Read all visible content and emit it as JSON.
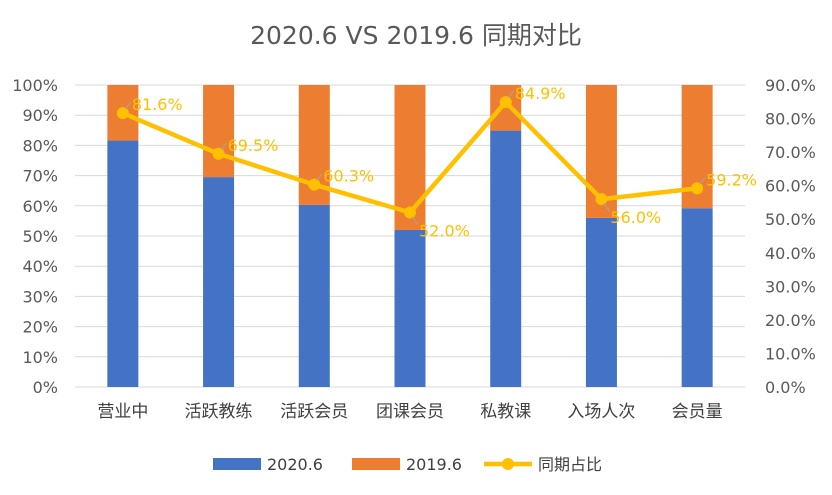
{
  "chart_data": {
    "type": "bar",
    "title": "2020.6 VS 2019.6 同期对比",
    "categories": [
      "营业中",
      "活跃教练",
      "活跃会员",
      "团课会员",
      "私教课",
      "入场人次",
      "会员量"
    ],
    "series": [
      {
        "name": "2020.6",
        "kind": "stacked-bar",
        "axis": "left",
        "color": "#4472C4",
        "values": [
          81.6,
          69.5,
          60.3,
          52.0,
          84.9,
          56.0,
          59.2
        ]
      },
      {
        "name": "2019.6",
        "kind": "stacked-bar",
        "axis": "left",
        "color": "#ED7D31",
        "values": [
          18.4,
          30.5,
          39.7,
          48.0,
          15.1,
          44.0,
          40.8
        ]
      },
      {
        "name": "同期占比",
        "kind": "line",
        "axis": "right",
        "color": "#FFC000",
        "values": [
          81.6,
          69.5,
          60.3,
          52.0,
          84.9,
          56.0,
          59.2
        ],
        "labels": [
          "81.6%",
          "69.5%",
          "60.3%",
          "52.0%",
          "84.9%",
          "56.0%",
          "59.2%"
        ]
      }
    ],
    "left_axis": {
      "min": 0,
      "max": 100,
      "step": 10,
      "ticks": [
        "0%",
        "10%",
        "20%",
        "30%",
        "40%",
        "50%",
        "60%",
        "70%",
        "80%",
        "90%",
        "100%"
      ]
    },
    "right_axis": {
      "min": 0,
      "max": 90,
      "step": 10,
      "ticks": [
        "0.0%",
        "10.0%",
        "20.0%",
        "30.0%",
        "40.0%",
        "50.0%",
        "60.0%",
        "70.0%",
        "80.0%",
        "90.0%"
      ]
    },
    "grid": true,
    "legend_position": "bottom",
    "legend": [
      {
        "label": "2020.6",
        "color": "#4472C4",
        "marker": "square"
      },
      {
        "label": "2019.6",
        "color": "#ED7D31",
        "marker": "square"
      },
      {
        "label": "同期占比",
        "color": "#FFC000",
        "marker": "line-dot"
      }
    ]
  }
}
